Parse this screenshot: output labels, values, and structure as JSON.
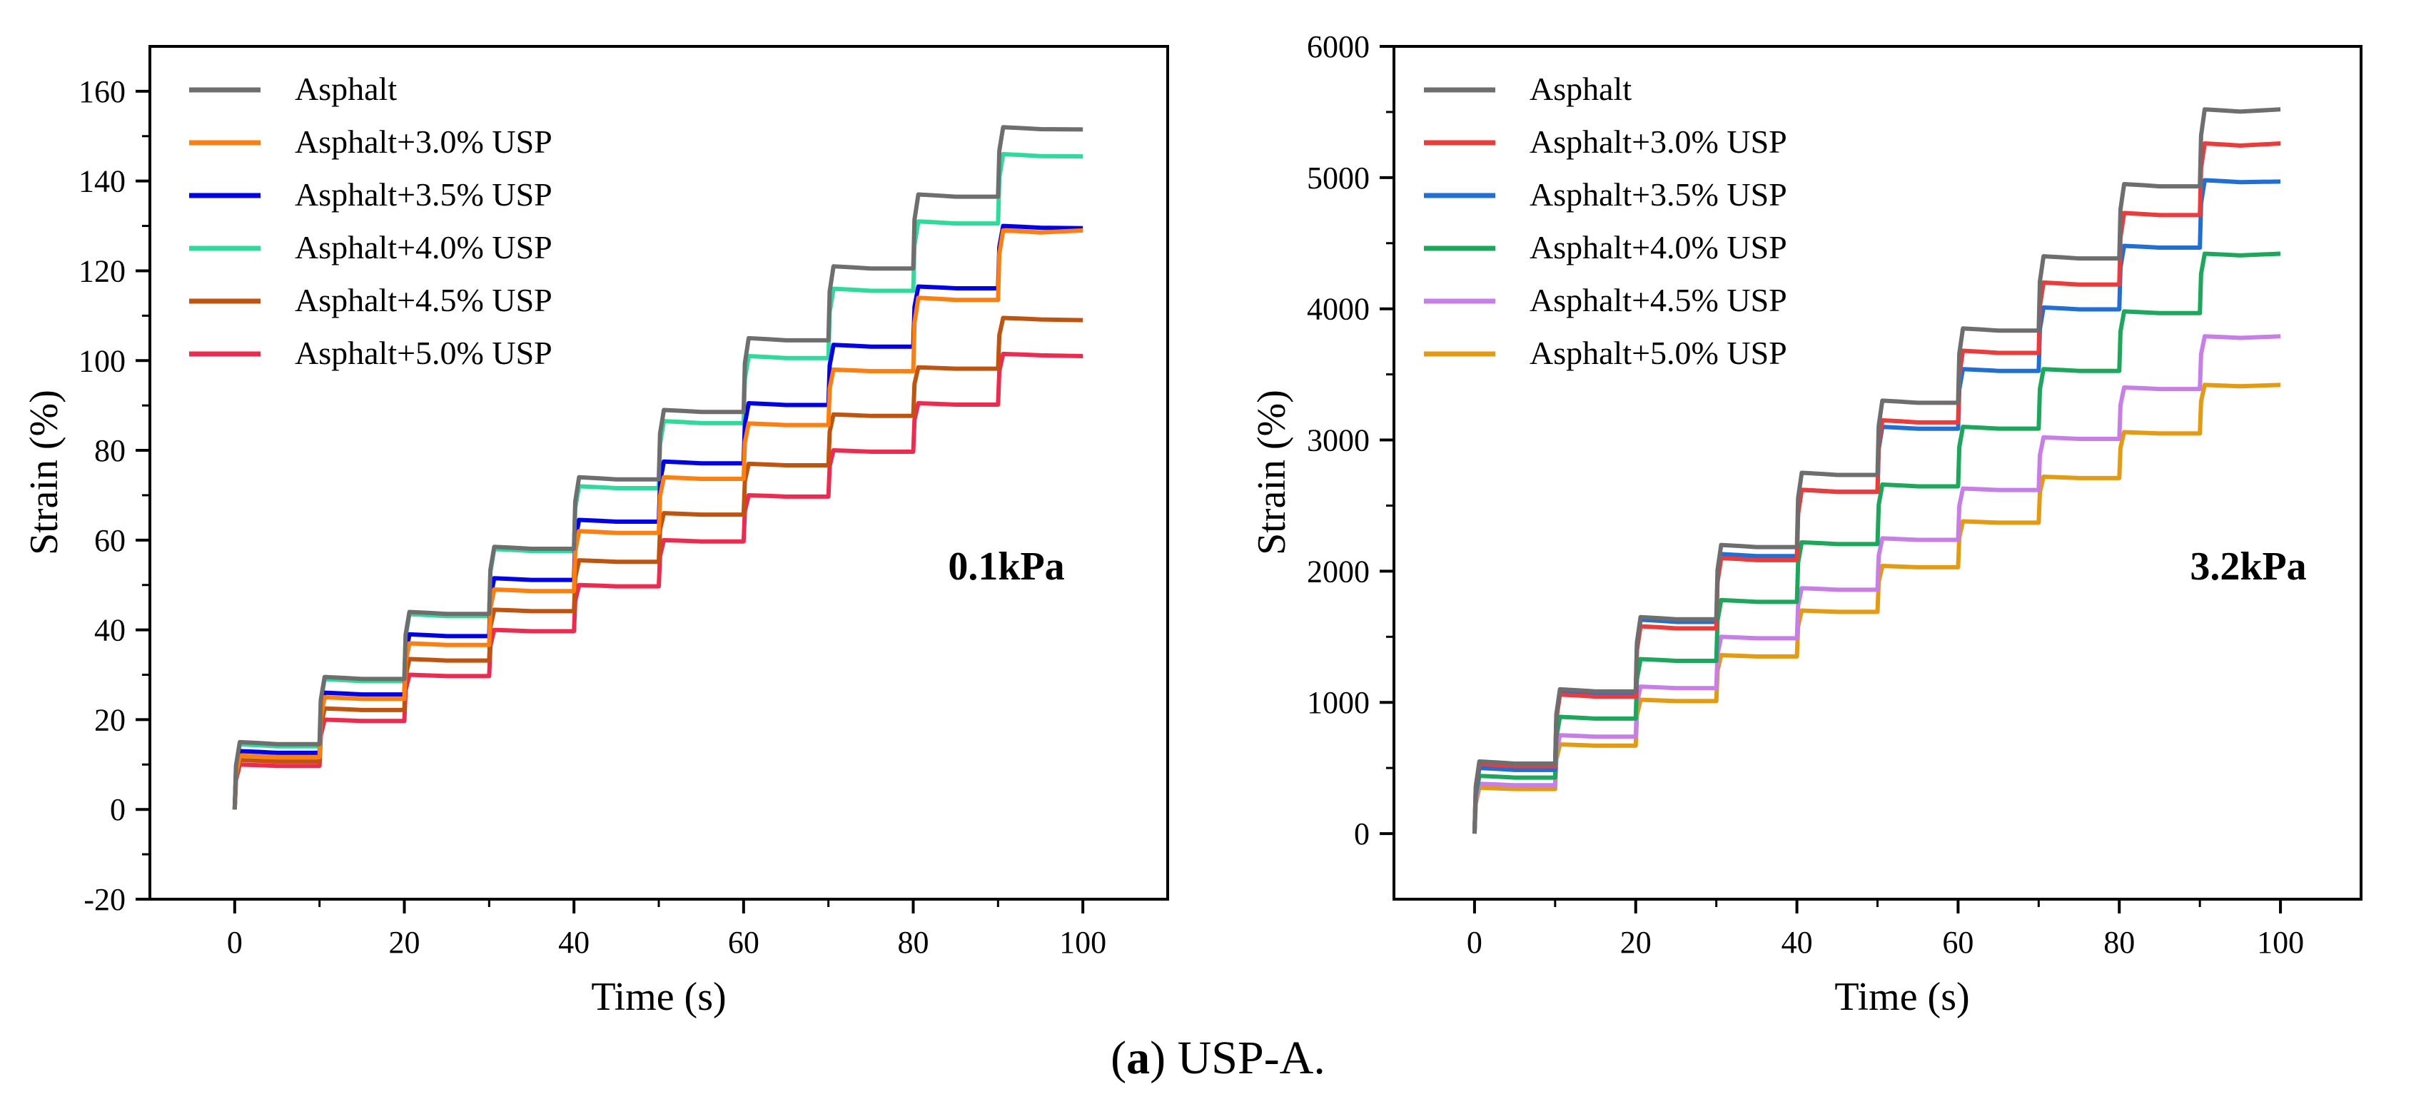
{
  "caption": {
    "label": "a",
    "open": "(",
    "close": ")",
    "text": " USP-A."
  },
  "chart_data": [
    {
      "type": "line",
      "annotation": "0.1kPa",
      "xlabel": "Time (s)",
      "ylabel": "Strain (%)",
      "xlim": [
        -10,
        110
      ],
      "ylim": [
        -20,
        170
      ],
      "xticks": [
        0,
        20,
        40,
        60,
        80,
        100
      ],
      "yticks": [
        -20,
        0,
        20,
        40,
        60,
        80,
        100,
        120,
        140,
        160
      ],
      "grid": false,
      "legend_position": "top-left",
      "series": [
        {
          "name": "Asphalt",
          "color": "#6e6e6e",
          "levels": [
            15,
            29.5,
            44,
            58.5,
            74,
            89,
            105,
            121,
            137,
            152
          ],
          "final": 151.5
        },
        {
          "name": "Asphalt+3.0% USP",
          "color": "#ff7f0e",
          "levels": [
            12,
            25,
            37,
            49,
            62,
            74,
            86,
            98,
            114,
            129
          ],
          "final": 129
        },
        {
          "name": "Asphalt+3.5% USP",
          "color": "#0000ee",
          "levels": [
            13,
            26,
            39,
            51.5,
            64.5,
            77.5,
            90.5,
            103.5,
            116.5,
            130
          ],
          "final": 129.5
        },
        {
          "name": "Asphalt+4.0% USP",
          "color": "#2ddb9a",
          "levels": [
            14.5,
            29,
            43.5,
            58,
            72,
            86.5,
            101,
            116,
            131,
            146
          ],
          "final": 145.5
        },
        {
          "name": "Asphalt+4.5% USP",
          "color": "#c0540e",
          "levels": [
            11,
            22.5,
            33.5,
            44.5,
            55.5,
            66,
            77,
            88,
            98.5,
            109.5
          ],
          "final": 109
        },
        {
          "name": "Asphalt+5.0% USP",
          "color": "#f2294e",
          "levels": [
            10,
            20,
            30,
            40,
            50,
            60,
            70,
            80,
            90.5,
            101.5
          ],
          "final": 101
        }
      ]
    },
    {
      "type": "line",
      "annotation": "3.2kPa",
      "xlabel": "Time (s)",
      "ylabel": "Strain (%)",
      "xlim": [
        -10,
        110
      ],
      "ylim": [
        -500,
        6000
      ],
      "xticks": [
        0,
        20,
        40,
        60,
        80,
        100
      ],
      "yticks": [
        0,
        1000,
        2000,
        3000,
        4000,
        5000,
        6000
      ],
      "grid": false,
      "legend_position": "top-left",
      "series": [
        {
          "name": "Asphalt",
          "color": "#6e6e6e",
          "levels": [
            550,
            1100,
            1650,
            2200,
            2750,
            3300,
            3850,
            4400,
            4950,
            5520
          ],
          "final": 5520
        },
        {
          "name": "Asphalt+3.0% USP",
          "color": "#ef3a3a",
          "levels": [
            530,
            1060,
            1580,
            2100,
            2620,
            3150,
            3680,
            4200,
            4730,
            5260
          ],
          "final": 5260
        },
        {
          "name": "Asphalt+3.5% USP",
          "color": "#1f6fd6",
          "levels": [
            500,
            1080,
            1630,
            2130,
            2620,
            3100,
            3540,
            4010,
            4480,
            4980
          ],
          "final": 4970
        },
        {
          "name": "Asphalt+4.0% USP",
          "color": "#1aa85a",
          "levels": [
            440,
            890,
            1330,
            1780,
            2220,
            2660,
            3100,
            3540,
            3980,
            4420
          ],
          "final": 4420
        },
        {
          "name": "Asphalt+4.5% USP",
          "color": "#c77ee8",
          "levels": [
            380,
            750,
            1120,
            1500,
            1870,
            2250,
            2630,
            3020,
            3400,
            3790
          ],
          "final": 3790
        },
        {
          "name": "Asphalt+5.0% USP",
          "color": "#e59a0f",
          "levels": [
            350,
            680,
            1020,
            1360,
            1700,
            2040,
            2380,
            2720,
            3060,
            3420
          ],
          "final": 3420
        }
      ]
    }
  ]
}
